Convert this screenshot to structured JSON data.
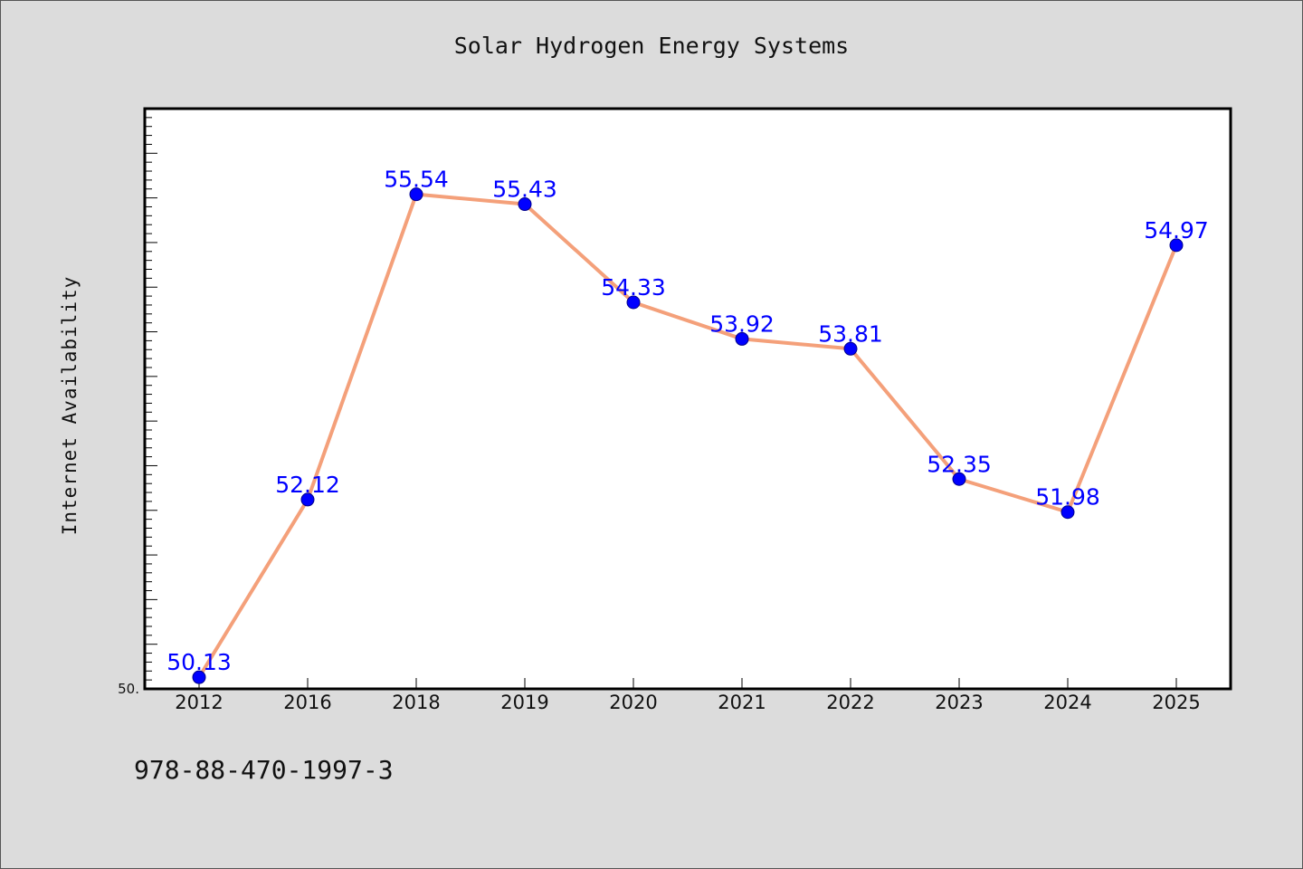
{
  "chart_data": {
    "type": "line",
    "title": "Solar Hydrogen Energy Systems",
    "xlabel": "",
    "ylabel": "Internet Availability",
    "categories": [
      "2012",
      "2016",
      "2018",
      "2019",
      "2020",
      "2021",
      "2022",
      "2023",
      "2024",
      "2025"
    ],
    "values": [
      50.13,
      52.12,
      55.54,
      55.43,
      54.33,
      53.92,
      53.81,
      52.35,
      51.98,
      54.97
    ],
    "data_labels": [
      "50.13",
      "52.12",
      "55.54",
      "55.43",
      "54.33",
      "53.92",
      "53.81",
      "52.35",
      "51.98",
      "54.97"
    ],
    "y_tick_label": "50.",
    "ylim": [
      50.0,
      56.5
    ],
    "grid": false,
    "line_color": "#f4a07a",
    "marker_color": "#0000ff",
    "label_color": "#0000ff",
    "plot_background": "#ffffff",
    "page_background": "#dcdcdc"
  },
  "footer_text": "978-88-470-1997-3"
}
